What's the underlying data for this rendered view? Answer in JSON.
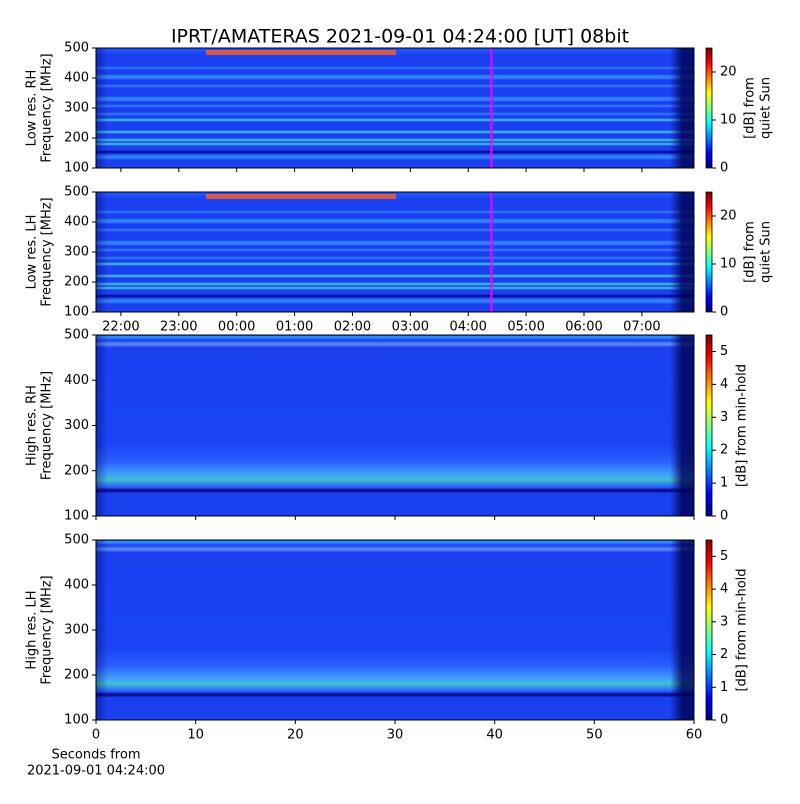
{
  "chart_data": [
    {
      "type": "heatmap",
      "title": "IPRT/AMATERAS 2021-09-01 04:24:00 [UT]   08bit",
      "ylabel": [
        "Low res. RH",
        "Frequency [MHz]"
      ],
      "xlim": [
        21.57,
        31.9
      ],
      "ylim": [
        100,
        500
      ],
      "yticks": [
        100,
        200,
        300,
        400,
        500
      ],
      "colormap": "jet",
      "clim": [
        0,
        25
      ],
      "cticks": [
        0,
        10,
        20
      ],
      "clabel": [
        "[dB] from",
        "quiet Sun"
      ],
      "marker_x": 28.4,
      "marker_color": "#ff00ff"
    },
    {
      "type": "heatmap",
      "ylabel": [
        "Low res. LH",
        "Frequency [MHz]"
      ],
      "xlim": [
        21.57,
        31.9
      ],
      "ylim": [
        100,
        500
      ],
      "yticks": [
        100,
        200,
        300,
        400,
        500
      ],
      "xticks": [
        {
          "value": 22,
          "label": "22:00"
        },
        {
          "value": 23,
          "label": "23:00"
        },
        {
          "value": 24,
          "label": "00:00"
        },
        {
          "value": 25,
          "label": "01:00"
        },
        {
          "value": 26,
          "label": "02:00"
        },
        {
          "value": 27,
          "label": "03:00"
        },
        {
          "value": 28,
          "label": "04:00"
        },
        {
          "value": 29,
          "label": "05:00"
        },
        {
          "value": 30,
          "label": "06:00"
        },
        {
          "value": 31,
          "label": "07:00"
        }
      ],
      "colormap": "jet",
      "clim": [
        0,
        25
      ],
      "cticks": [
        0,
        10,
        20
      ],
      "clabel": [
        "[dB] from",
        "quiet Sun"
      ],
      "marker_x": 28.4,
      "marker_color": "#ff00ff"
    },
    {
      "type": "heatmap",
      "ylabel": [
        "High res. RH",
        "Frequency [MHz]"
      ],
      "xlim": [
        0,
        60
      ],
      "ylim": [
        100,
        500
      ],
      "yticks": [
        100,
        200,
        300,
        400,
        500
      ],
      "colormap": "jet",
      "clim": [
        0,
        5.5
      ],
      "cticks": [
        0,
        1,
        2,
        3,
        4,
        5
      ],
      "clabel": [
        "[dB] from min-hold"
      ]
    },
    {
      "type": "heatmap",
      "ylabel": [
        "High res. LH",
        "Frequency [MHz]"
      ],
      "xlim": [
        0,
        60
      ],
      "ylim": [
        100,
        500
      ],
      "yticks": [
        100,
        200,
        300,
        400,
        500
      ],
      "xticks": [
        0,
        10,
        20,
        30,
        40,
        50,
        60
      ],
      "xlabel": [
        "Seconds from",
        "2021-09-01 04:24:00"
      ],
      "colormap": "jet",
      "clim": [
        0,
        5.5
      ],
      "cticks": [
        0,
        1,
        2,
        3,
        4,
        5
      ],
      "clabel": [
        "[dB] from min-hold"
      ]
    }
  ]
}
